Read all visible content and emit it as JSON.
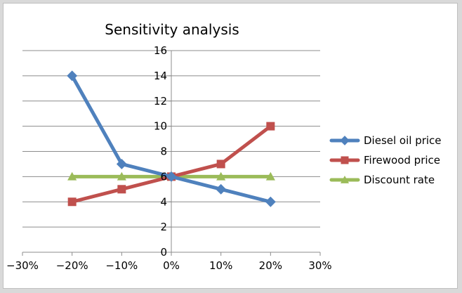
{
  "chart_data": {
    "type": "line",
    "title": "Sensitivity analysis",
    "xlabel": "",
    "ylabel": "",
    "x_ticks": [
      "−30%",
      "−20%",
      "−10%",
      "0%",
      "10%",
      "20%",
      "30%"
    ],
    "y_ticks": [
      "0",
      "2",
      "4",
      "6",
      "8",
      "10",
      "12",
      "14",
      "16"
    ],
    "xlim": [
      -30,
      30
    ],
    "ylim": [
      0,
      16
    ],
    "grid": "horizontal",
    "legend_position": "right",
    "series": [
      {
        "name": "Diesel oil price",
        "color": "#4f81bd",
        "marker": "diamond",
        "x": [
          -20,
          -10,
          0,
          10,
          20
        ],
        "y": [
          14,
          7,
          6,
          5,
          4
        ]
      },
      {
        "name": "Firewood price",
        "color": "#c0504d",
        "marker": "square",
        "x": [
          -20,
          -10,
          0,
          10,
          20
        ],
        "y": [
          4,
          5,
          6,
          7,
          10
        ]
      },
      {
        "name": "Discount rate",
        "color": "#9bbb59",
        "marker": "triangle",
        "x": [
          -20,
          -10,
          0,
          10,
          20
        ],
        "y": [
          6,
          6,
          6,
          6,
          6
        ]
      }
    ]
  }
}
